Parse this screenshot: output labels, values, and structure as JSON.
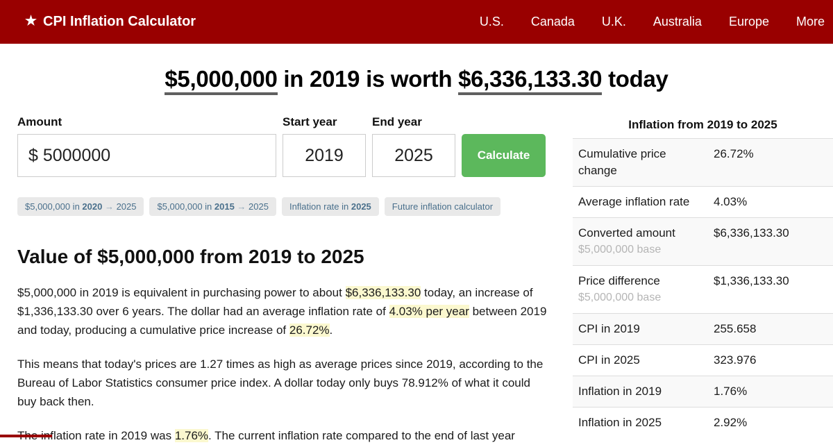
{
  "navbar": {
    "brand_icon": "★",
    "brand": "CPI Inflation Calculator",
    "links": [
      "U.S.",
      "Canada",
      "U.K.",
      "Australia",
      "Europe",
      "More"
    ]
  },
  "headline": {
    "amount": "$5,000,000",
    "middle": " in 2019 is worth ",
    "result": "$6,336,133.30",
    "suffix": " today"
  },
  "calculator": {
    "amount_label": "Amount",
    "amount_value": "$ 5000000",
    "start_year_label": "Start year",
    "start_year_value": "2019",
    "end_year_label": "End year",
    "end_year_value": "2025",
    "calculate_label": "Calculate"
  },
  "quick_links": [
    {
      "segments": [
        {
          "text": "$5,000,000 in "
        },
        {
          "text": "2020",
          "bold": true
        },
        {
          "text": " → ",
          "muted": true
        },
        {
          "text": "2025"
        }
      ]
    },
    {
      "segments": [
        {
          "text": "$5,000,000 in "
        },
        {
          "text": "2015",
          "bold": true
        },
        {
          "text": " → ",
          "muted": true
        },
        {
          "text": "2025"
        }
      ]
    },
    {
      "segments": [
        {
          "text": "Inflation rate in "
        },
        {
          "text": "2025",
          "bold": true
        }
      ]
    },
    {
      "segments": [
        {
          "text": "Future inflation calculator"
        }
      ]
    }
  ],
  "article": {
    "heading": "Value of $5,000,000 from 2019 to 2025",
    "paragraphs": [
      {
        "segments": [
          {
            "text": "$5,000,000 in 2019 is equivalent in purchasing power to about "
          },
          {
            "text": "$6,336,133.30",
            "highlight": true
          },
          {
            "text": " today, an increase of $1,336,133.30 over 6 years. The dollar had an average inflation rate of "
          },
          {
            "text": "4.03% per year",
            "highlight": true
          },
          {
            "text": " between 2019 and today, producing a cumulative price increase of "
          },
          {
            "text": "26.72%",
            "highlight": true
          },
          {
            "text": "."
          }
        ]
      },
      {
        "segments": [
          {
            "text": "This means that today's prices are 1.27 times as high as average prices since 2019, according to the Bureau of Labor Statistics consumer price index. A dollar today only buys 78.912% of what it could buy back then."
          }
        ]
      },
      {
        "segments": [
          {
            "text": "The inflation rate in 2019 was "
          },
          {
            "text": "1.76%",
            "highlight": true
          },
          {
            "text": ". The current inflation rate compared to the end of last year"
          }
        ]
      }
    ]
  },
  "summary": {
    "title": "Inflation from 2019 to 2025",
    "rows": [
      {
        "label": "Cumulative price change",
        "value": "26.72%"
      },
      {
        "label": "Average inflation rate",
        "value": "4.03%"
      },
      {
        "label": "Converted amount",
        "sublabel": "$5,000,000 base",
        "value": "$6,336,133.30"
      },
      {
        "label": "Price difference",
        "sublabel": "$5,000,000 base",
        "value": "$1,336,133.30"
      },
      {
        "label": "CPI in 2019",
        "value": "255.658"
      },
      {
        "label": "CPI in 2025",
        "value": "323.976"
      },
      {
        "label": "Inflation in 2019",
        "value": "1.76%"
      },
      {
        "label": "Inflation in 2025",
        "value": "2.92%"
      }
    ]
  },
  "colors": {
    "navbar_red": "#990000",
    "calculate_green": "#5cb85c",
    "highlight_yellow": "#fbf8cf",
    "chip_text_blue": "#4a708c",
    "table_stripe_gray": "#f9f9f9"
  }
}
